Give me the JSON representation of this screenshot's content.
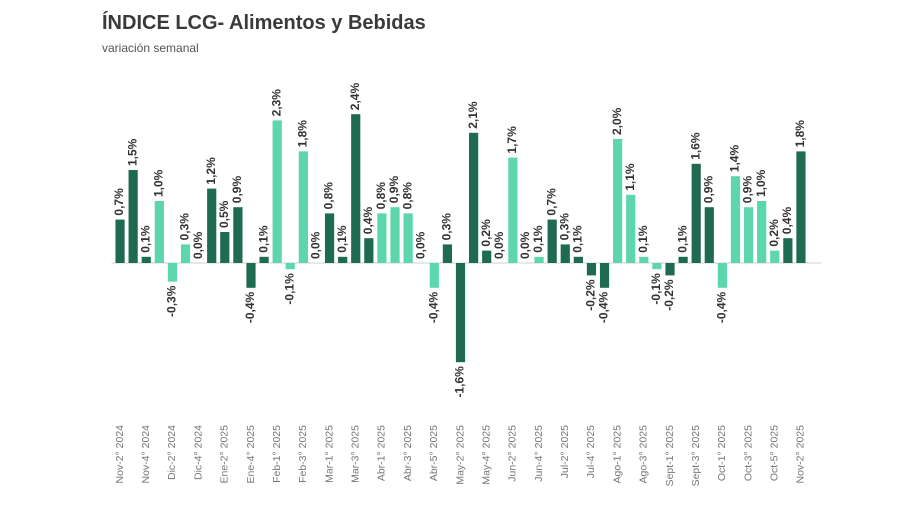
{
  "chart_data": {
    "type": "bar",
    "title": "ÍNDICE LCG- Alimentos y Bebidas",
    "subtitle": "variación semanal",
    "categories": [
      "Nov-2° 2024",
      null,
      "Nov-4° 2024",
      null,
      "Dic-2° 2024",
      null,
      "Dic-4° 2024",
      null,
      "Ene-2° 2025",
      null,
      "Ene-4° 2025",
      null,
      "Feb-1° 2025",
      null,
      "Feb-3° 2025",
      null,
      "Mar-1° 2025",
      null,
      "Mar-3° 2025",
      null,
      "Abr-1° 2025",
      null,
      "Abr-3° 2025",
      null,
      "Abr-5° 2025",
      null,
      "May-2° 2025",
      null,
      "May-4° 2025",
      null,
      "Jun-2° 2025",
      null,
      "Jun-4° 2025",
      null,
      "Jul-2° 2025",
      null,
      "Jul-4° 2025",
      null,
      "Ago-1° 2025",
      null,
      "Ago-3° 2025",
      null,
      "Sept-1° 2025",
      null,
      "Sept-3° 2025",
      null,
      "Oct-1° 2025",
      null,
      "Oct-3° 2025",
      null,
      "Oct-5° 2025",
      null,
      "Nov-2° 2025"
    ],
    "values": [
      0.7,
      1.5,
      0.1,
      1.0,
      -0.3,
      0.3,
      0.0,
      1.2,
      0.5,
      0.9,
      -0.4,
      0.1,
      2.3,
      -0.1,
      1.8,
      0.0,
      0.8,
      0.1,
      2.4,
      0.4,
      0.8,
      0.9,
      0.8,
      0.0,
      -0.4,
      0.3,
      -1.6,
      2.1,
      0.2,
      0.0,
      1.7,
      0.0,
      0.1,
      0.7,
      0.3,
      0.1,
      -0.2,
      -0.4,
      2.0,
      1.1,
      0.1,
      -0.1,
      -0.2,
      0.1,
      1.6,
      0.9,
      -0.4,
      1.4,
      0.9,
      1.0,
      0.2,
      0.4,
      1.8
    ],
    "value_labels": [
      "0,7%",
      "1,5%",
      "0,1%",
      "1,0%",
      "-0,3%",
      "0,3%",
      "0,0%",
      "1,2%",
      "0,5%",
      "0,9%",
      "-0,4%",
      "0,1%",
      "2,3%",
      "-0,1%",
      "1,8%",
      "0,0%",
      "0,8%",
      "0,1%",
      "2,4%",
      "0,4%",
      "0,8%",
      "0,9%",
      "0,8%",
      "0,0%",
      "-0,4%",
      "0,3%",
      "-1,6%",
      "2,1%",
      "0,2%",
      "0,0%",
      "1,7%",
      "0,0%",
      "0,1%",
      "0,7%",
      "0,3%",
      "0,1%",
      "-0,2%",
      "-0,4%",
      "2,0%",
      "1,1%",
      "0,1%",
      "-0,1%",
      "-0,2%",
      "0,1%",
      "1,6%",
      "0,9%",
      "-0,4%",
      "1,4%",
      "0,9%",
      "1,0%",
      "0,2%",
      "0,4%",
      "1,8%"
    ],
    "colors": [
      "#1f6b52",
      "#1f6b52",
      "#1f6b52",
      "#5cd6aa",
      "#5cd6aa",
      "#5cd6aa",
      "#5cd6aa",
      "#1f6b52",
      "#1f6b52",
      "#1f6b52",
      "#1f6b52",
      "#1f6b52",
      "#5cd6aa",
      "#5cd6aa",
      "#5cd6aa",
      "#5cd6aa",
      "#1f6b52",
      "#1f6b52",
      "#1f6b52",
      "#1f6b52",
      "#5cd6aa",
      "#5cd6aa",
      "#5cd6aa",
      "#5cd6aa",
      "#5cd6aa",
      "#1f6b52",
      "#1f6b52",
      "#1f6b52",
      "#1f6b52",
      "#1f6b52",
      "#5cd6aa",
      "#5cd6aa",
      "#5cd6aa",
      "#1f6b52",
      "#1f6b52",
      "#1f6b52",
      "#1f6b52",
      "#1f6b52",
      "#5cd6aa",
      "#5cd6aa",
      "#5cd6aa",
      "#5cd6aa",
      "#1f6b52",
      "#1f6b52",
      "#1f6b52",
      "#1f6b52",
      "#5cd6aa",
      "#5cd6aa",
      "#5cd6aa",
      "#5cd6aa",
      "#5cd6aa",
      "#1f6b52",
      "#1f6b52"
    ],
    "ylim": [
      -2.2,
      3.2
    ]
  }
}
